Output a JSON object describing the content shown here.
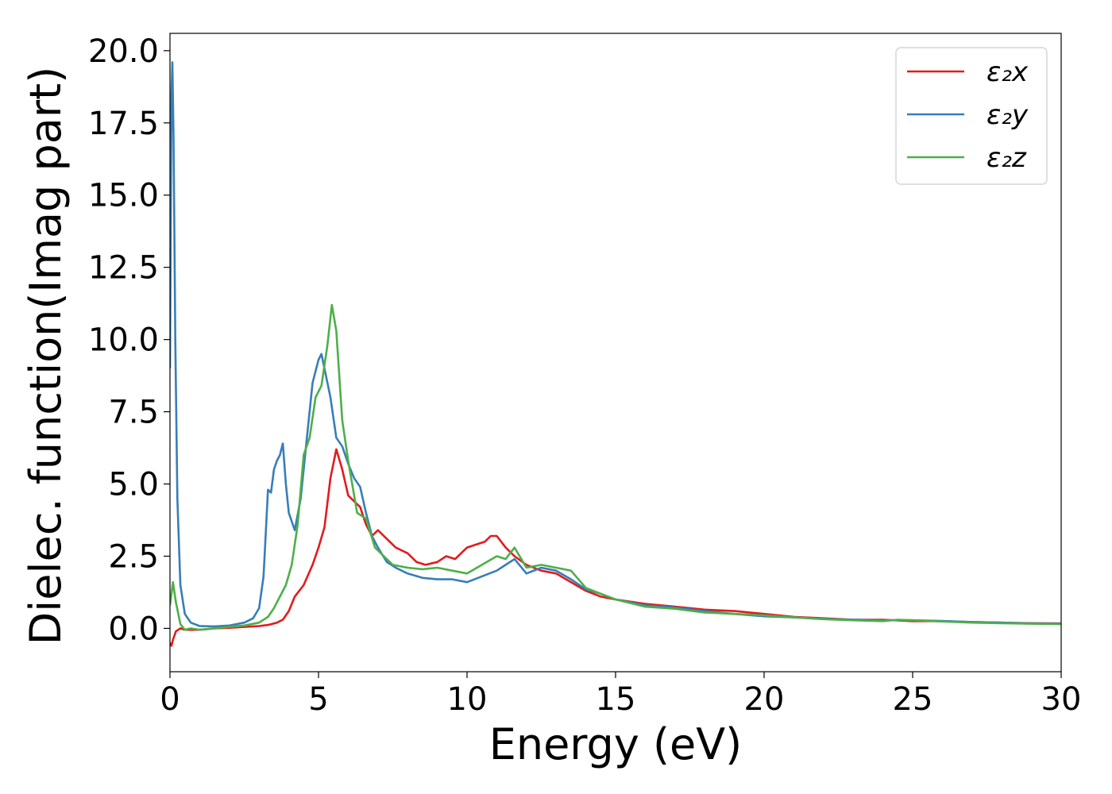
{
  "chart_data": {
    "type": "line",
    "title": "",
    "xlabel": "Energy (eV)",
    "ylabel": "Dielec. function(Imag part)",
    "xlim": [
      0,
      30
    ],
    "ylim": [
      -1.5,
      20.6
    ],
    "xticks": [
      0,
      5,
      10,
      15,
      20,
      25,
      30
    ],
    "xtick_labels": [
      "0",
      "5",
      "10",
      "15",
      "20",
      "25",
      "30"
    ],
    "yticks": [
      0,
      2.5,
      5,
      7.5,
      10,
      12.5,
      15,
      17.5,
      20
    ],
    "ytick_labels": [
      "0.0",
      "2.5",
      "5.0",
      "7.5",
      "10.0",
      "12.5",
      "15.0",
      "17.5",
      "20.0"
    ],
    "grid": false,
    "legend_position": "top-right",
    "series": [
      {
        "name": "ε₂x",
        "color": "#e41a1c",
        "x": [
          0,
          0.05,
          0.1,
          0.2,
          0.35,
          0.5,
          0.7,
          1.0,
          1.5,
          2.0,
          2.5,
          3.0,
          3.3,
          3.6,
          3.8,
          4.0,
          4.2,
          4.5,
          4.8,
          5.0,
          5.2,
          5.4,
          5.6,
          5.8,
          6.0,
          6.2,
          6.4,
          6.6,
          6.8,
          7.0,
          7.3,
          7.6,
          8.0,
          8.3,
          8.6,
          9.0,
          9.3,
          9.6,
          10.0,
          10.3,
          10.6,
          10.8,
          11.0,
          11.3,
          11.6,
          12.0,
          12.5,
          13.0,
          13.5,
          14.0,
          14.5,
          15.0,
          16.0,
          17.0,
          18.0,
          19.0,
          20.0,
          21.0,
          22.0,
          23.0,
          24.0,
          25.0,
          26.0,
          27.0,
          28.0,
          29.0,
          30.0
        ],
        "values": [
          -0.5,
          -0.6,
          -0.4,
          -0.1,
          0.0,
          -0.05,
          -0.05,
          -0.05,
          0.0,
          0.02,
          0.05,
          0.08,
          0.12,
          0.2,
          0.3,
          0.6,
          1.1,
          1.5,
          2.2,
          2.8,
          3.5,
          5.2,
          6.2,
          5.5,
          4.6,
          4.4,
          4.2,
          3.6,
          3.2,
          3.4,
          3.1,
          2.8,
          2.6,
          2.3,
          2.2,
          2.3,
          2.5,
          2.4,
          2.8,
          2.9,
          3.0,
          3.2,
          3.2,
          2.8,
          2.5,
          2.2,
          2.0,
          1.9,
          1.6,
          1.3,
          1.1,
          1.0,
          0.85,
          0.75,
          0.65,
          0.6,
          0.5,
          0.4,
          0.35,
          0.3,
          0.3,
          0.25,
          0.25,
          0.22,
          0.2,
          0.18,
          0.17
        ]
      },
      {
        "name": "ε₂y",
        "color": "#377eb8",
        "x": [
          0,
          0.05,
          0.08,
          0.12,
          0.18,
          0.25,
          0.35,
          0.5,
          0.7,
          1.0,
          1.5,
          2.0,
          2.5,
          2.8,
          3.0,
          3.15,
          3.3,
          3.4,
          3.5,
          3.6,
          3.7,
          3.8,
          3.9,
          4.0,
          4.2,
          4.4,
          4.6,
          4.8,
          5.0,
          5.1,
          5.2,
          5.4,
          5.6,
          5.8,
          6.0,
          6.2,
          6.4,
          6.6,
          6.8,
          7.0,
          7.3,
          7.6,
          8.0,
          8.5,
          9.0,
          9.5,
          10.0,
          10.5,
          11.0,
          11.3,
          11.6,
          12.0,
          12.5,
          13.0,
          13.5,
          14.0,
          14.5,
          15.0,
          16.0,
          17.0,
          18.0,
          19.0,
          20.0,
          21.0,
          22.0,
          23.0,
          24.0,
          25.0,
          26.0,
          27.0,
          28.0,
          29.0,
          30.0
        ],
        "values": [
          9.0,
          18.5,
          19.6,
          17.0,
          10.0,
          4.5,
          1.5,
          0.5,
          0.2,
          0.08,
          0.07,
          0.1,
          0.2,
          0.35,
          0.7,
          1.8,
          4.8,
          4.7,
          5.5,
          5.8,
          6.0,
          6.4,
          5.0,
          4.0,
          3.4,
          4.5,
          6.5,
          8.5,
          9.3,
          9.5,
          9.0,
          8.0,
          6.6,
          6.3,
          5.7,
          5.2,
          4.9,
          4.0,
          3.2,
          2.8,
          2.3,
          2.1,
          1.9,
          1.75,
          1.7,
          1.7,
          1.6,
          1.8,
          2.0,
          2.2,
          2.4,
          1.9,
          2.1,
          2.0,
          1.7,
          1.35,
          1.2,
          1.0,
          0.8,
          0.72,
          0.6,
          0.5,
          0.42,
          0.38,
          0.33,
          0.3,
          0.28,
          0.28,
          0.26,
          0.22,
          0.2,
          0.17,
          0.16
        ]
      },
      {
        "name": "ε₂z",
        "color": "#4daf4a",
        "x": [
          0,
          0.05,
          0.1,
          0.2,
          0.35,
          0.5,
          0.7,
          1.0,
          1.5,
          2.0,
          2.5,
          3.0,
          3.3,
          3.5,
          3.7,
          3.9,
          4.1,
          4.3,
          4.5,
          4.7,
          4.9,
          5.1,
          5.3,
          5.45,
          5.6,
          5.8,
          6.0,
          6.3,
          6.6,
          6.9,
          7.2,
          7.5,
          8.0,
          8.5,
          9.0,
          9.5,
          10.0,
          10.5,
          11.0,
          11.3,
          11.6,
          12.0,
          12.5,
          13.0,
          13.5,
          14.0,
          14.5,
          15.0,
          16.0,
          17.0,
          18.0,
          19.0,
          20.0,
          21.0,
          22.0,
          23.0,
          24.0,
          24.5,
          25.0,
          26.0,
          27.0,
          28.0,
          29.0,
          30.0
        ],
        "values": [
          0.8,
          1.2,
          1.6,
          0.9,
          0.15,
          -0.05,
          0.0,
          -0.05,
          0.0,
          0.05,
          0.1,
          0.2,
          0.4,
          0.7,
          1.1,
          1.5,
          2.2,
          3.6,
          6.0,
          6.6,
          8.0,
          8.4,
          9.8,
          11.2,
          10.3,
          7.2,
          5.8,
          4.0,
          3.8,
          2.8,
          2.5,
          2.2,
          2.1,
          2.05,
          2.1,
          2.0,
          1.9,
          2.2,
          2.5,
          2.4,
          2.8,
          2.1,
          2.2,
          2.1,
          2.0,
          1.4,
          1.2,
          1.0,
          0.75,
          0.68,
          0.55,
          0.5,
          0.45,
          0.38,
          0.32,
          0.28,
          0.25,
          0.3,
          0.28,
          0.24,
          0.2,
          0.18,
          0.16,
          0.15
        ]
      }
    ]
  }
}
